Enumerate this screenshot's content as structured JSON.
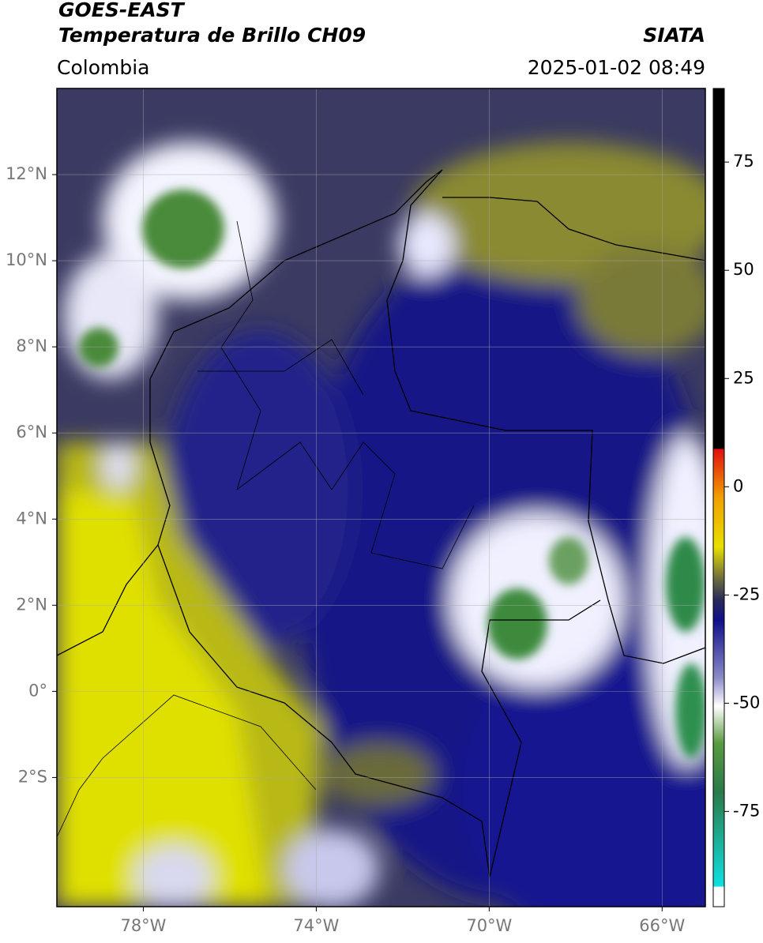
{
  "header": {
    "source": "GOES-EAST",
    "product": "Temperatura de Brillo CH09",
    "agency": "SIATA",
    "region": "Colombia",
    "datetime": "2025-01-02 08:49"
  },
  "map": {
    "xlim": [
      -80,
      -65
    ],
    "ylim": [
      -5,
      14
    ],
    "xticks": [
      {
        "value": -78,
        "label": "78°W"
      },
      {
        "value": -74,
        "label": "74°W"
      },
      {
        "value": -70,
        "label": "70°W"
      },
      {
        "value": -66,
        "label": "66°W"
      }
    ],
    "yticks": [
      {
        "value": 12,
        "label": "12°N"
      },
      {
        "value": 10,
        "label": "10°N"
      },
      {
        "value": 8,
        "label": "8°N"
      },
      {
        "value": 6,
        "label": "6°N"
      },
      {
        "value": 4,
        "label": "4°N"
      },
      {
        "value": 2,
        "label": "2°N"
      },
      {
        "value": 0,
        "label": "0°"
      },
      {
        "value": -2,
        "label": "2°S"
      }
    ],
    "grid": true
  },
  "colorbar": {
    "clim": [
      -97,
      92
    ],
    "ticks": [
      75,
      50,
      25,
      0,
      -25,
      -50,
      -75
    ]
  }
}
